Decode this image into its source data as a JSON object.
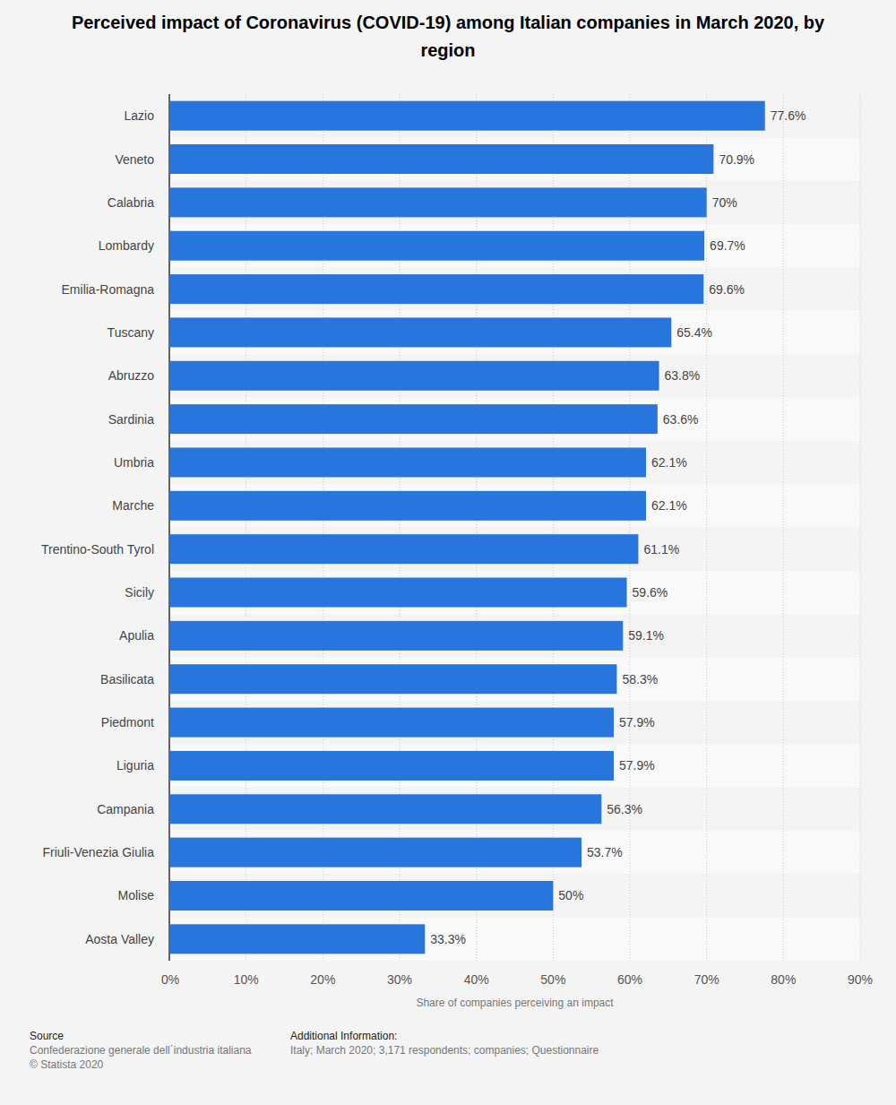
{
  "chart_data": {
    "type": "bar",
    "title": "Perceived impact of Coronavirus (COVID-19) among Italian companies in March 2020, by region",
    "categories": [
      "Lazio",
      "Veneto",
      "Calabria",
      "Lombardy",
      "Emilia-Romagna",
      "Tuscany",
      "Abruzzo",
      "Sardinia",
      "Umbria",
      "Marche",
      "Trentino-South Tyrol",
      "Sicily",
      "Apulia",
      "Basilicata",
      "Piedmont",
      "Liguria",
      "Campania",
      "Friuli-Venezia Giulia",
      "Molise",
      "Aosta Valley"
    ],
    "values": [
      77.6,
      70.9,
      70,
      69.7,
      69.6,
      65.4,
      63.8,
      63.6,
      62.1,
      62.1,
      61.1,
      59.6,
      59.1,
      58.3,
      57.9,
      57.9,
      56.3,
      53.7,
      50,
      33.3
    ],
    "value_labels": [
      "77.6%",
      "70.9%",
      "70%",
      "69.7%",
      "69.6%",
      "65.4%",
      "63.8%",
      "63.6%",
      "62.1%",
      "62.1%",
      "61.1%",
      "59.6%",
      "59.1%",
      "58.3%",
      "57.9%",
      "57.9%",
      "56.3%",
      "53.7%",
      "50%",
      "33.3%"
    ],
    "color": "#2876dd",
    "orientation": "horizontal",
    "data_labels": true,
    "grid": true,
    "xlim": [
      0,
      90
    ],
    "xticks": [
      {
        "value": 0,
        "label": "0%"
      },
      {
        "value": 10,
        "label": "10%"
      },
      {
        "value": 20,
        "label": "20%"
      },
      {
        "value": 30,
        "label": "30%"
      },
      {
        "value": 40,
        "label": "40%"
      },
      {
        "value": 50,
        "label": "50%"
      },
      {
        "value": 60,
        "label": "60%"
      },
      {
        "value": 70,
        "label": "70%"
      },
      {
        "value": 80,
        "label": "80%"
      },
      {
        "value": 90,
        "label": "90%"
      }
    ],
    "xlabel": "Share of companies perceiving an impact",
    "source_label": "Source",
    "source": "Confederazione generale dell´industria italiana",
    "copyright": "© Statista 2020",
    "info_label": "Additional Information:",
    "info": "Italy; March 2020; 3,171 respondents; companies; Questionnaire"
  }
}
